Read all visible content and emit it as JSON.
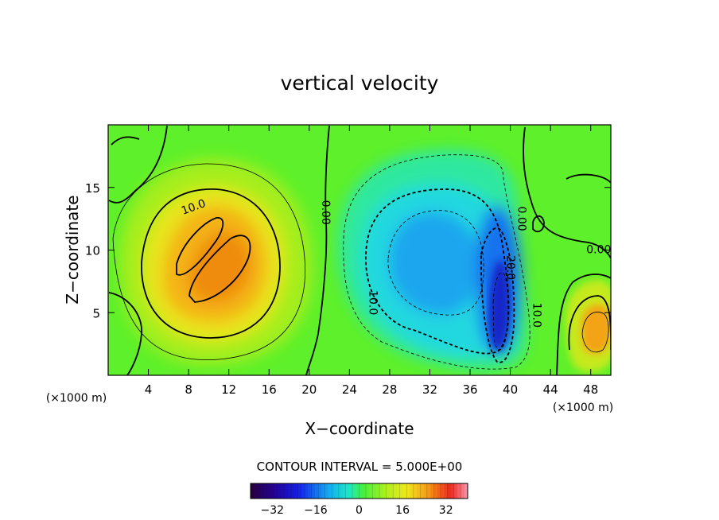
{
  "chart_data": {
    "type": "heatmap",
    "title": "vertical velocity",
    "xlabel": "X−coordinate",
    "ylabel": "Z−coordinate",
    "x_unit_left": "(×1000 m)",
    "x_unit_right": "(×1000 m)",
    "xlim": [
      0,
      50
    ],
    "ylim": [
      0,
      20
    ],
    "x_ticks": [
      4,
      8,
      12,
      16,
      20,
      24,
      28,
      32,
      36,
      40,
      44,
      48
    ],
    "y_ticks": [
      5,
      10,
      15
    ],
    "contour_interval_text": "CONTOUR INTERVAL = 5.000E+00",
    "contour_labels": [
      {
        "text": "10.0",
        "x": 8.5,
        "y": 13.4,
        "rotate": -20
      },
      {
        "text": "0.00",
        "x": 21.6,
        "y": 13.0,
        "rotate": 90
      },
      {
        "text": "10.0",
        "x": 26.3,
        "y": 5.8,
        "rotate": 90
      },
      {
        "text": "20.0",
        "x": 40.0,
        "y": 8.6,
        "rotate": 90
      },
      {
        "text": "0.00",
        "x": 41.1,
        "y": 12.5,
        "rotate": 90
      },
      {
        "text": "10.0",
        "x": 42.6,
        "y": 4.8,
        "rotate": 90
      },
      {
        "text": "0.00",
        "x": 48.8,
        "y": 10.0,
        "rotate": 0
      }
    ],
    "features": [
      {
        "sign": "positive",
        "cx": 10.5,
        "cy": 9.5,
        "rx": 6.5,
        "ry": 7.5,
        "peak": 18
      },
      {
        "sign": "positive",
        "cx": 48.0,
        "cy": 4.0,
        "rx": 2.2,
        "ry": 2.6,
        "peak": 15
      },
      {
        "sign": "negative",
        "cx": 31.5,
        "cy": 9.5,
        "rx": 7.0,
        "ry": 6.5,
        "peak": -13
      },
      {
        "sign": "negative",
        "cx": 39.0,
        "cy": 6.0,
        "rx": 2.0,
        "ry": 4.8,
        "peak": -24
      }
    ],
    "colorbar": {
      "ticks": [
        -32,
        -16,
        0,
        16,
        32
      ],
      "tick_labels": [
        "−32",
        "−16",
        "0",
        "16",
        "32"
      ],
      "range": [
        -40,
        40
      ]
    }
  }
}
